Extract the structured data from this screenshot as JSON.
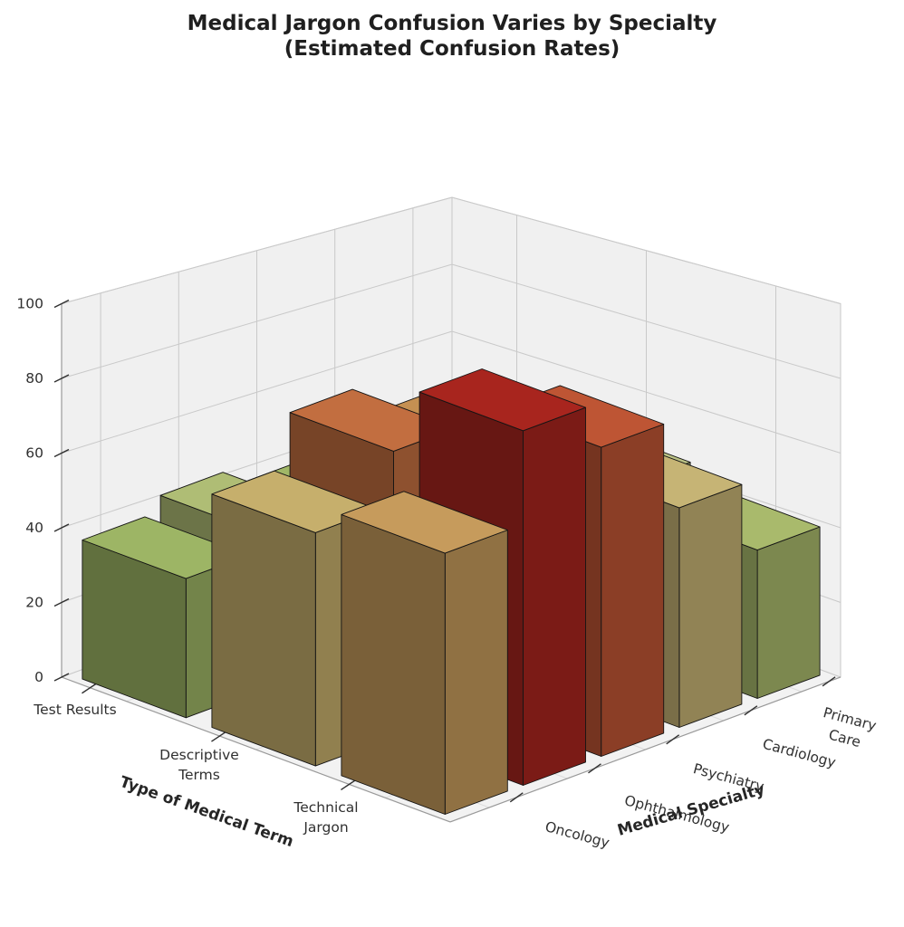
{
  "title": {
    "line1": "Medical Jargon Confusion Varies by Specialty",
    "line2": "(Estimated Confusion Rates)"
  },
  "chart_data": {
    "type": "bar",
    "subtype": "3d-bar-grid",
    "title": "Medical Jargon Confusion Varies by Specialty (Estimated Confusion Rates)",
    "xlabel": "Type of Medical Term",
    "ylabel": "Medical Specialty",
    "zlabel": "",
    "x_categories": [
      "Test Results",
      "Descriptive\nTerms",
      "Technical\nJargon"
    ],
    "y_categories": [
      "Oncology",
      "Ophthalmology",
      "Psychiatry",
      "Cardiology",
      "Primary\nCare"
    ],
    "z_ticks": [
      0,
      20,
      40,
      60,
      80,
      100
    ],
    "zlim": [
      0,
      100
    ],
    "grid": true,
    "legend": false,
    "colormap": "RdYlGn_r",
    "colormap_low_hex": "#006837",
    "colormap_mid_hex": "#ffffbf",
    "colormap_high_hex": "#a50026",
    "series": [
      {
        "name": "Test Results",
        "values": [
          37,
          42,
          38,
          38,
          36
        ]
      },
      {
        "name": "Descriptive Terms",
        "values": [
          60,
          75,
          68,
          52,
          46
        ]
      },
      {
        "name": "Technical Jargon",
        "values": [
          65,
          90,
          80,
          58,
          40
        ]
      }
    ]
  }
}
